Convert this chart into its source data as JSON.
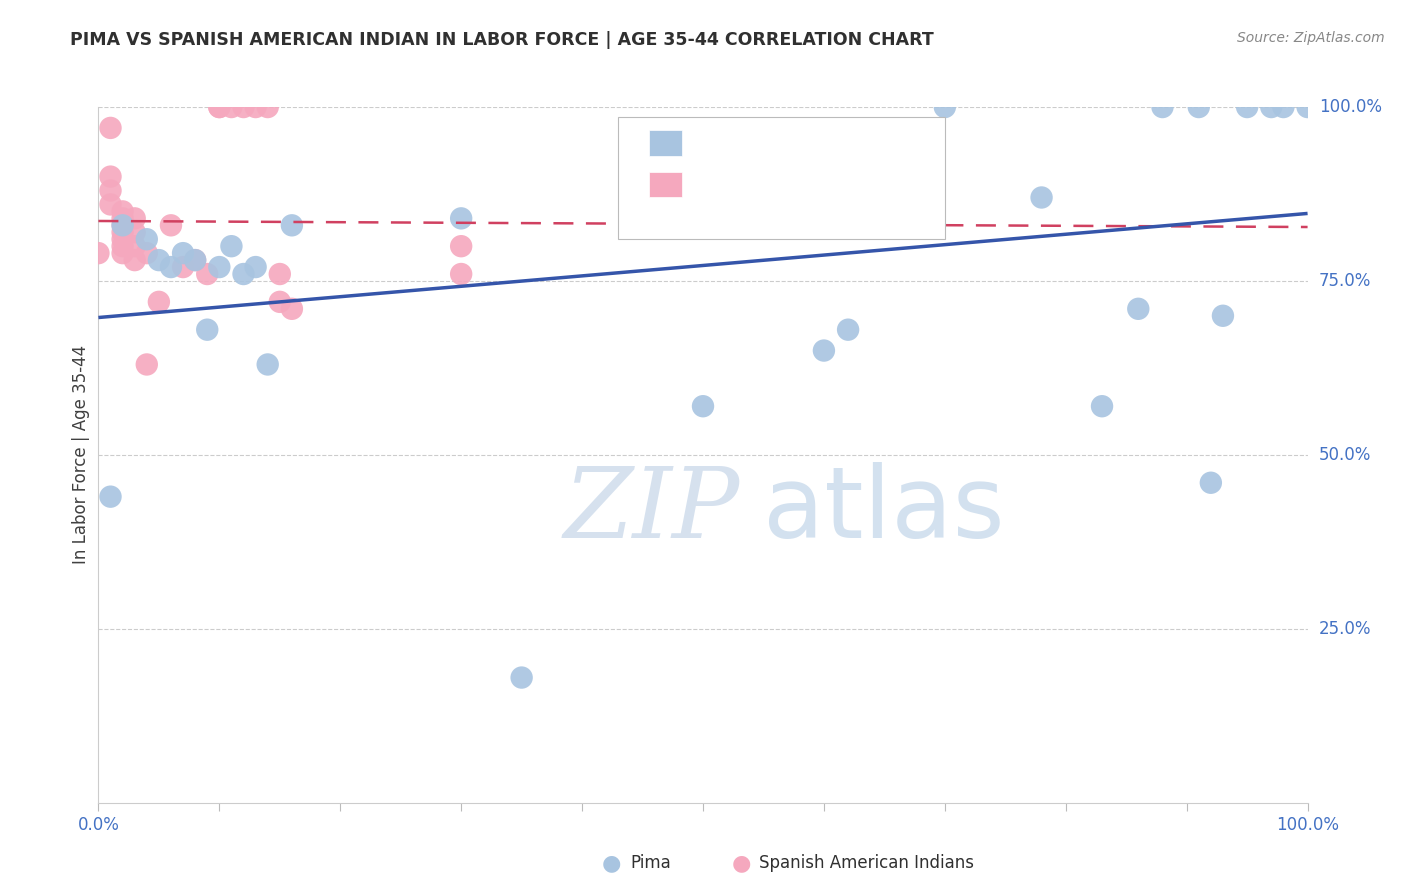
{
  "title": "PIMA VS SPANISH AMERICAN INDIAN IN LABOR FORCE | AGE 35-44 CORRELATION CHART",
  "source": "Source: ZipAtlas.com",
  "ylabel": "In Labor Force | Age 35-44",
  "xlim": [
    0,
    1
  ],
  "ylim": [
    0,
    1
  ],
  "ytick_labels": [
    "25.0%",
    "50.0%",
    "75.0%",
    "100.0%"
  ],
  "ytick_positions": [
    0.25,
    0.5,
    0.75,
    1.0
  ],
  "pima_color": "#a8c4e0",
  "spanish_color": "#f5a8be",
  "pima_line_color": "#3555aa",
  "spanish_line_color": "#d04060",
  "title_color": "#303030",
  "axis_color": "#4472c4",
  "legend_text_color": "#cc2244",
  "watermark_zip": "ZIP",
  "watermark_atlas": "atlas",
  "pima_scatter_x": [
    0.01,
    0.02,
    0.04,
    0.05,
    0.06,
    0.07,
    0.08,
    0.09,
    0.1,
    0.11,
    0.12,
    0.13,
    0.16,
    0.3,
    0.6,
    0.65,
    0.7,
    0.78,
    0.83,
    0.86,
    0.88,
    0.91,
    0.93,
    0.95,
    0.97,
    0.98,
    1.0,
    0.62,
    0.35,
    0.14,
    0.5,
    0.92
  ],
  "pima_scatter_y": [
    0.44,
    0.83,
    0.81,
    0.78,
    0.77,
    0.79,
    0.78,
    0.68,
    0.77,
    0.8,
    0.76,
    0.77,
    0.83,
    0.84,
    0.65,
    0.88,
    1.0,
    0.87,
    0.57,
    0.71,
    1.0,
    1.0,
    0.7,
    1.0,
    1.0,
    1.0,
    1.0,
    0.68,
    0.18,
    0.63,
    0.57,
    0.46
  ],
  "spanish_scatter_x": [
    0.0,
    0.01,
    0.01,
    0.01,
    0.01,
    0.02,
    0.02,
    0.02,
    0.02,
    0.02,
    0.02,
    0.02,
    0.03,
    0.03,
    0.03,
    0.03,
    0.04,
    0.04,
    0.05,
    0.06,
    0.07,
    0.08,
    0.09,
    0.1,
    0.1,
    0.11,
    0.12,
    0.13,
    0.14,
    0.15,
    0.15,
    0.16,
    0.3,
    0.3
  ],
  "spanish_scatter_y": [
    0.79,
    0.97,
    0.9,
    0.88,
    0.86,
    0.85,
    0.84,
    0.83,
    0.82,
    0.81,
    0.8,
    0.79,
    0.84,
    0.82,
    0.8,
    0.78,
    0.79,
    0.63,
    0.72,
    0.83,
    0.77,
    0.78,
    0.76,
    1.0,
    1.0,
    1.0,
    1.0,
    1.0,
    1.0,
    0.76,
    0.72,
    0.71,
    0.8,
    0.76
  ]
}
